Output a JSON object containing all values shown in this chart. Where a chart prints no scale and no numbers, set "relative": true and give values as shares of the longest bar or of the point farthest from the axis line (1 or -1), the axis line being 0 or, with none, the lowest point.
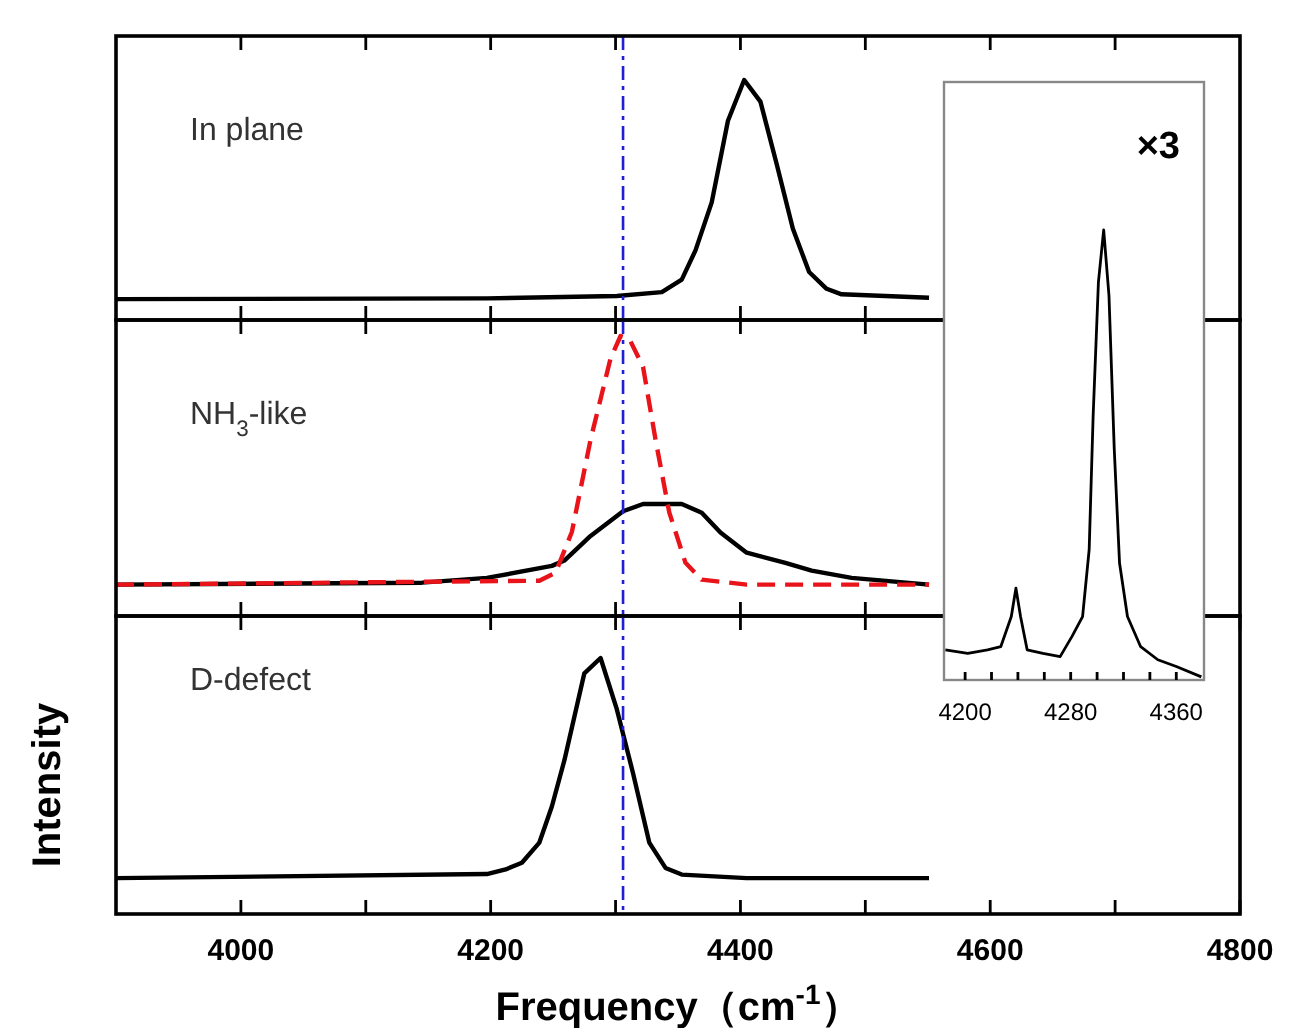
{
  "chart_data": [
    {
      "type": "line",
      "relative": true,
      "tick_labels": false,
      "annotations": [
        "In plane"
      ],
      "xlim": [
        3900,
        4800
      ],
      "xticks": [
        {
          "value": 4000,
          "label": null
        },
        {
          "value": 4100,
          "label": null
        },
        {
          "value": 4200,
          "label": null
        },
        {
          "value": 4300,
          "label": null
        },
        {
          "value": 4400,
          "label": null
        },
        {
          "value": 4500,
          "label": null
        },
        {
          "value": 4600,
          "label": null
        },
        {
          "value": 4700,
          "label": null
        }
      ],
      "ref_lines": [
        {
          "axis": "x",
          "value": 4306,
          "color": "#1f1fd6",
          "line_style": "dashed"
        }
      ],
      "series": [
        {
          "color": "#000000",
          "x": [
            3900,
            4197,
            4301,
            4337,
            4353,
            4364,
            4377,
            4390,
            4403,
            4416,
            4429,
            4442,
            4455,
            4469,
            4481,
            4551
          ],
          "values": [
            0.087,
            0.09,
            0.1,
            0.116,
            0.168,
            0.29,
            0.49,
            0.83,
            1,
            0.91,
            0.65,
            0.38,
            0.2,
            0.13,
            0.107,
            0.093
          ]
        }
      ]
    },
    {
      "type": "line",
      "relative": true,
      "tick_labels": false,
      "annotations": [
        "NH$_{3}$-like"
      ],
      "xlim": [
        3900,
        4800
      ],
      "xticks": [
        {
          "value": 4000,
          "label": null
        },
        {
          "value": 4100,
          "label": null
        },
        {
          "value": 4200,
          "label": null
        },
        {
          "value": 4300,
          "label": null
        },
        {
          "value": 4400,
          "label": null
        },
        {
          "value": 4500,
          "label": null
        },
        {
          "value": 4600,
          "label": null
        },
        {
          "value": 4700,
          "label": null
        }
      ],
      "ref_lines": [
        {
          "axis": "x",
          "value": 4306,
          "color": "#1f1fd6",
          "line_style": "dashed"
        }
      ],
      "series": [
        {
          "color": "#000000",
          "x": [
            3900,
            4145,
            4197,
            4249,
            4259,
            4280,
            4306,
            4322,
            4353,
            4369,
            4384,
            4405,
            4436,
            4457,
            4489,
            4551
          ],
          "values": [
            0.112,
            0.119,
            0.136,
            0.179,
            0.198,
            0.286,
            0.374,
            0.4,
            0.4,
            0.369,
            0.298,
            0.226,
            0.19,
            0.162,
            0.136,
            0.112
          ]
        },
        {
          "color": "#e8141a",
          "line_style": "dashed",
          "x": [
            3900,
            4239,
            4252,
            4265,
            4280,
            4296,
            4304,
            4311,
            4322,
            4332,
            4343,
            4356,
            4369,
            4405,
            4551
          ],
          "values": [
            0.112,
            0.126,
            0.155,
            0.3,
            0.63,
            0.92,
            1,
            0.99,
            0.89,
            0.63,
            0.37,
            0.19,
            0.13,
            0.112,
            0.112
          ]
        }
      ]
    },
    {
      "type": "line",
      "relative": true,
      "tick_labels": "x",
      "annotations": [
        "D-defect"
      ],
      "xlabel": "Frequency（cm$^{-1}$）",
      "ylabel": "Intensity",
      "xlim": [
        3900,
        4800
      ],
      "xticks": [
        4000,
        {
          "value": 4100,
          "label": null
        },
        4200,
        {
          "value": 4300,
          "label": null
        },
        4400,
        {
          "value": 4500,
          "label": null
        },
        4600,
        {
          "value": 4700,
          "label": null
        },
        4800
      ],
      "ref_lines": [
        {
          "axis": "x",
          "value": 4306,
          "color": "#1f1fd6",
          "line_style": "dashed"
        }
      ],
      "series": [
        {
          "color": "#000000",
          "x": [
            3900,
            4197,
            4212,
            4225,
            4239,
            4249,
            4259,
            4275,
            4288,
            4301,
            4314,
            4327,
            4340,
            4353,
            4405,
            4551
          ],
          "values": [
            0.14,
            0.156,
            0.174,
            0.2,
            0.279,
            0.42,
            0.6,
            0.94,
            1,
            0.8,
            0.55,
            0.279,
            0.18,
            0.154,
            0.14,
            0.14
          ]
        }
      ]
    },
    {
      "type": "line",
      "relative": true,
      "tick_labels": "x",
      "annotations": [
        "×3"
      ],
      "xlim": [
        4184,
        4381
      ],
      "xticks": [
        4200,
        {
          "value": 4220,
          "label": null
        },
        {
          "value": 4240,
          "label": null
        },
        {
          "value": 4260,
          "label": null
        },
        4280,
        {
          "value": 4300,
          "label": null
        },
        {
          "value": 4320,
          "label": null
        },
        {
          "value": 4340,
          "label": null
        },
        4360
      ],
      "series": [
        {
          "color": "#000000",
          "x": [
            4185,
            4202,
            4217,
            4227,
            4235,
            4238.5,
            4242,
            4247,
            4259,
            4272,
            4281,
            4289,
            4294,
            4297,
            4301,
            4305,
            4309,
            4313,
            4317,
            4323,
            4333,
            4346,
            4360,
            4379
          ],
          "values": [
            0.067,
            0.059,
            0.067,
            0.074,
            0.141,
            0.204,
            0.141,
            0.067,
            0.059,
            0.052,
            0.097,
            0.141,
            0.29,
            0.587,
            0.884,
            1,
            0.854,
            0.513,
            0.26,
            0.141,
            0.074,
            0.045,
            0.03,
            0.007
          ]
        }
      ]
    }
  ]
}
